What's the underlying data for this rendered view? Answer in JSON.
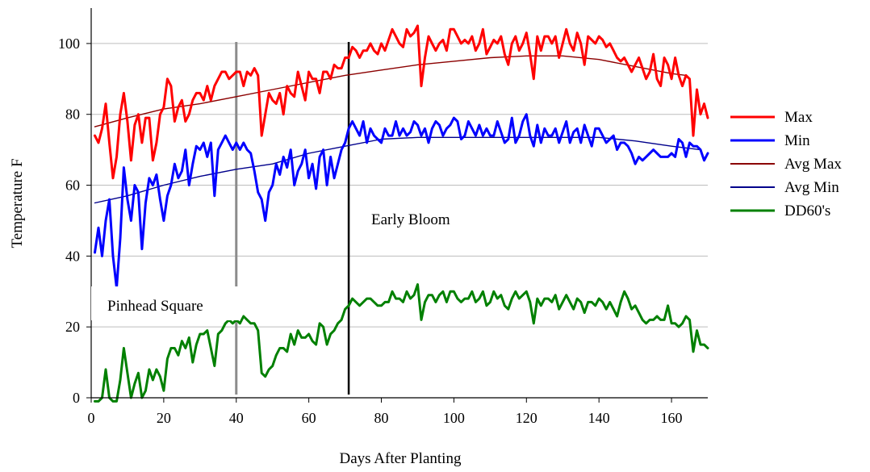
{
  "chart_data": {
    "type": "line",
    "title": "",
    "xlabel": "Days After Planting",
    "ylabel": "Temperature F",
    "xlim": [
      0,
      170
    ],
    "ylim": [
      0,
      110
    ],
    "xticks": [
      0,
      20,
      40,
      60,
      80,
      100,
      120,
      140,
      160
    ],
    "yticks": [
      0,
      20,
      40,
      60,
      80,
      100
    ],
    "grid": "horizontal",
    "legend_position": "right",
    "annotations": [
      {
        "text": "Pinhead Square",
        "x": 40,
        "color": "#8c8c8c"
      },
      {
        "text": "Early Bloom",
        "x": 71,
        "color": "#000000"
      }
    ],
    "series": [
      {
        "name": "Max",
        "color": "#ff0000",
        "x": [
          1,
          2,
          3,
          4,
          5,
          6,
          7,
          8,
          9,
          10,
          11,
          12,
          13,
          14,
          15,
          16,
          17,
          18,
          19,
          20,
          21,
          22,
          23,
          24,
          25,
          26,
          27,
          28,
          29,
          30,
          31,
          32,
          33,
          34,
          35,
          36,
          37,
          38,
          39,
          40,
          41,
          42,
          43,
          44,
          45,
          46,
          47,
          48,
          49,
          50,
          51,
          52,
          53,
          54,
          55,
          56,
          57,
          58,
          59,
          60,
          61,
          62,
          63,
          64,
          65,
          66,
          67,
          68,
          69,
          70,
          71,
          72,
          73,
          74,
          75,
          76,
          77,
          78,
          79,
          80,
          81,
          82,
          83,
          84,
          85,
          86,
          87,
          88,
          89,
          90,
          91,
          92,
          93,
          94,
          95,
          96,
          97,
          98,
          99,
          100,
          101,
          102,
          103,
          104,
          105,
          106,
          107,
          108,
          109,
          110,
          111,
          112,
          113,
          114,
          115,
          116,
          117,
          118,
          119,
          120,
          121,
          122,
          123,
          124,
          125,
          126,
          127,
          128,
          129,
          130,
          131,
          132,
          133,
          134,
          135,
          136,
          137,
          138,
          139,
          140,
          141,
          142,
          143,
          144,
          145,
          146,
          147,
          148,
          149,
          150,
          151,
          152,
          153,
          154,
          155,
          156,
          157,
          158,
          159,
          160,
          161,
          162,
          163,
          164,
          165,
          166,
          167,
          168,
          169,
          170
        ],
        "values": [
          74,
          72,
          76,
          83,
          72,
          62,
          68,
          80,
          86,
          78,
          67,
          77,
          80,
          72,
          79,
          79,
          67,
          72,
          80,
          82,
          90,
          88,
          78,
          82,
          84,
          78,
          80,
          84,
          86,
          86,
          84,
          88,
          84,
          88,
          90,
          92,
          92,
          90,
          91,
          92,
          92,
          88,
          92,
          91,
          93,
          91,
          74,
          80,
          86,
          84,
          83,
          86,
          80,
          88,
          86,
          85,
          92,
          88,
          84,
          92,
          90,
          90,
          86,
          92,
          92,
          90,
          94,
          93,
          93,
          96,
          96,
          99,
          98,
          96,
          98,
          98,
          100,
          98,
          97,
          100,
          98,
          101,
          104,
          102,
          100,
          99,
          104,
          102,
          103,
          105,
          88,
          96,
          102,
          100,
          98,
          100,
          101,
          98,
          104,
          104,
          102,
          100,
          101,
          100,
          102,
          98,
          100,
          104,
          97,
          99,
          101,
          100,
          102,
          97,
          94,
          100,
          102,
          98,
          100,
          103,
          97,
          90,
          102,
          98,
          102,
          102,
          100,
          102,
          96,
          100,
          104,
          100,
          98,
          103,
          100,
          94,
          102,
          101,
          100,
          102,
          101,
          99,
          100,
          98,
          96,
          95,
          96,
          94,
          92,
          94,
          96,
          93,
          90,
          92,
          97,
          90,
          88,
          96,
          94,
          90,
          96,
          91,
          88,
          91,
          90,
          74,
          87,
          80,
          83,
          79
        ]
      },
      {
        "name": "Min",
        "color": "#0000ff",
        "x": [
          1,
          2,
          3,
          4,
          5,
          6,
          7,
          8,
          9,
          10,
          11,
          12,
          13,
          14,
          15,
          16,
          17,
          18,
          19,
          20,
          21,
          22,
          23,
          24,
          25,
          26,
          27,
          28,
          29,
          30,
          31,
          32,
          33,
          34,
          35,
          36,
          37,
          38,
          39,
          40,
          41,
          42,
          43,
          44,
          45,
          46,
          47,
          48,
          49,
          50,
          51,
          52,
          53,
          54,
          55,
          56,
          57,
          58,
          59,
          60,
          61,
          62,
          63,
          64,
          65,
          66,
          67,
          68,
          69,
          70,
          71,
          72,
          73,
          74,
          75,
          76,
          77,
          78,
          79,
          80,
          81,
          82,
          83,
          84,
          85,
          86,
          87,
          88,
          89,
          90,
          91,
          92,
          93,
          94,
          95,
          96,
          97,
          98,
          99,
          100,
          101,
          102,
          103,
          104,
          105,
          106,
          107,
          108,
          109,
          110,
          111,
          112,
          113,
          114,
          115,
          116,
          117,
          118,
          119,
          120,
          121,
          122,
          123,
          124,
          125,
          126,
          127,
          128,
          129,
          130,
          131,
          132,
          133,
          134,
          135,
          136,
          137,
          138,
          139,
          140,
          141,
          142,
          143,
          144,
          145,
          146,
          147,
          148,
          149,
          150,
          151,
          152,
          153,
          154,
          155,
          156,
          157,
          158,
          159,
          160,
          161,
          162,
          163,
          164,
          165,
          166,
          167,
          168,
          169,
          170
        ],
        "values": [
          41,
          48,
          40,
          50,
          56,
          40,
          31,
          45,
          65,
          56,
          50,
          60,
          58,
          42,
          55,
          62,
          60,
          63,
          56,
          50,
          57,
          60,
          66,
          62,
          64,
          70,
          60,
          66,
          71,
          70,
          72,
          68,
          72,
          57,
          70,
          72,
          74,
          72,
          70,
          72,
          70,
          72,
          70,
          69,
          64,
          58,
          56,
          50,
          58,
          60,
          66,
          63,
          68,
          65,
          70,
          60,
          64,
          66,
          70,
          62,
          66,
          59,
          68,
          70,
          60,
          68,
          62,
          66,
          70,
          72,
          76,
          78,
          76,
          74,
          78,
          72,
          76,
          74,
          73,
          72,
          76,
          74,
          74,
          78,
          74,
          76,
          74,
          75,
          78,
          77,
          74,
          76,
          72,
          76,
          78,
          77,
          74,
          76,
          77,
          79,
          78,
          73,
          74,
          78,
          76,
          74,
          77,
          74,
          76,
          74,
          74,
          78,
          75,
          72,
          73,
          79,
          72,
          74,
          78,
          80,
          74,
          71,
          77,
          72,
          76,
          74,
          74,
          76,
          72,
          75,
          78,
          72,
          75,
          76,
          72,
          77,
          74,
          71,
          76,
          76,
          74,
          72,
          73,
          74,
          70,
          72,
          72,
          71,
          69,
          66,
          68,
          67,
          68,
          69,
          70,
          69,
          68,
          68,
          68,
          69,
          68,
          73,
          72,
          68,
          72,
          71,
          71,
          70,
          67,
          69
        ]
      },
      {
        "name": "Avg Max",
        "color": "#8b0000",
        "x": [
          1,
          10,
          20,
          30,
          40,
          50,
          60,
          70,
          80,
          90,
          100,
          110,
          120,
          130,
          140,
          150,
          160,
          164
        ],
        "values": [
          76.5,
          79,
          81.5,
          83,
          85,
          87,
          89,
          91,
          92.5,
          94,
          95,
          96,
          96.5,
          96.5,
          95.5,
          93.5,
          91.5,
          91
        ]
      },
      {
        "name": "Avg Min",
        "color": "#00008b",
        "x": [
          1,
          10,
          20,
          30,
          40,
          50,
          60,
          70,
          80,
          90,
          100,
          110,
          120,
          130,
          140,
          150,
          160,
          168
        ],
        "values": [
          55,
          57,
          60,
          62.5,
          64.5,
          66,
          69,
          71,
          73,
          73.5,
          73.5,
          73.5,
          73.5,
          73.5,
          73.5,
          72.5,
          71,
          70
        ]
      },
      {
        "name": "DD60's",
        "color": "#008000",
        "x": [
          1,
          2,
          3,
          4,
          5,
          6,
          7,
          8,
          9,
          10,
          11,
          12,
          13,
          14,
          15,
          16,
          17,
          18,
          19,
          20,
          21,
          22,
          23,
          24,
          25,
          26,
          27,
          28,
          29,
          30,
          31,
          32,
          33,
          34,
          35,
          36,
          37,
          38,
          39,
          40,
          41,
          42,
          43,
          44,
          45,
          46,
          47,
          48,
          49,
          50,
          51,
          52,
          53,
          54,
          55,
          56,
          57,
          58,
          59,
          60,
          61,
          62,
          63,
          64,
          65,
          66,
          67,
          68,
          69,
          70,
          71,
          72,
          73,
          74,
          75,
          76,
          77,
          78,
          79,
          80,
          81,
          82,
          83,
          84,
          85,
          86,
          87,
          88,
          89,
          90,
          91,
          92,
          93,
          94,
          95,
          96,
          97,
          98,
          99,
          100,
          101,
          102,
          103,
          104,
          105,
          106,
          107,
          108,
          109,
          110,
          111,
          112,
          113,
          114,
          115,
          116,
          117,
          118,
          119,
          120,
          121,
          122,
          123,
          124,
          125,
          126,
          127,
          128,
          129,
          130,
          131,
          132,
          133,
          134,
          135,
          136,
          137,
          138,
          139,
          140,
          141,
          142,
          143,
          144,
          145,
          146,
          147,
          148,
          149,
          150,
          151,
          152,
          153,
          154,
          155,
          156,
          157,
          158,
          159,
          160,
          161,
          162,
          163,
          164,
          165,
          166,
          167,
          168,
          169,
          170
        ],
        "values": [
          -1,
          -1,
          0,
          8,
          0,
          -1,
          -1,
          5,
          14,
          7,
          0,
          4,
          7,
          0,
          2,
          8,
          5,
          8,
          6,
          2,
          11,
          14,
          14,
          12,
          16,
          14,
          17,
          10,
          15,
          18,
          18,
          19,
          14,
          9,
          18,
          19,
          21,
          22,
          21,
          22,
          21,
          23,
          22,
          21,
          21,
          19,
          7,
          6,
          8,
          9,
          12,
          14,
          14,
          13,
          18,
          15,
          19,
          17,
          17,
          18,
          16,
          15,
          21,
          20,
          15,
          18,
          19,
          21,
          22,
          25,
          26,
          28,
          27,
          26,
          27,
          28,
          28,
          27,
          26,
          26,
          27,
          27,
          30,
          28,
          28,
          27,
          30,
          28,
          29,
          32,
          22,
          27,
          29,
          29,
          27,
          29,
          30,
          27,
          30,
          30,
          28,
          27,
          28,
          28,
          30,
          27,
          28,
          30,
          26,
          27,
          30,
          28,
          29,
          26,
          25,
          28,
          30,
          28,
          29,
          30,
          27,
          21,
          28,
          26,
          28,
          28,
          27,
          29,
          25,
          27,
          29,
          27,
          25,
          28,
          27,
          24,
          27,
          27,
          26,
          28,
          27,
          25,
          27,
          25,
          23,
          27,
          30,
          28,
          25,
          26,
          24,
          22,
          21,
          22,
          22,
          23,
          22,
          22,
          26,
          21,
          21,
          20,
          21,
          23,
          22,
          13,
          19,
          15,
          15,
          14
        ]
      }
    ]
  }
}
